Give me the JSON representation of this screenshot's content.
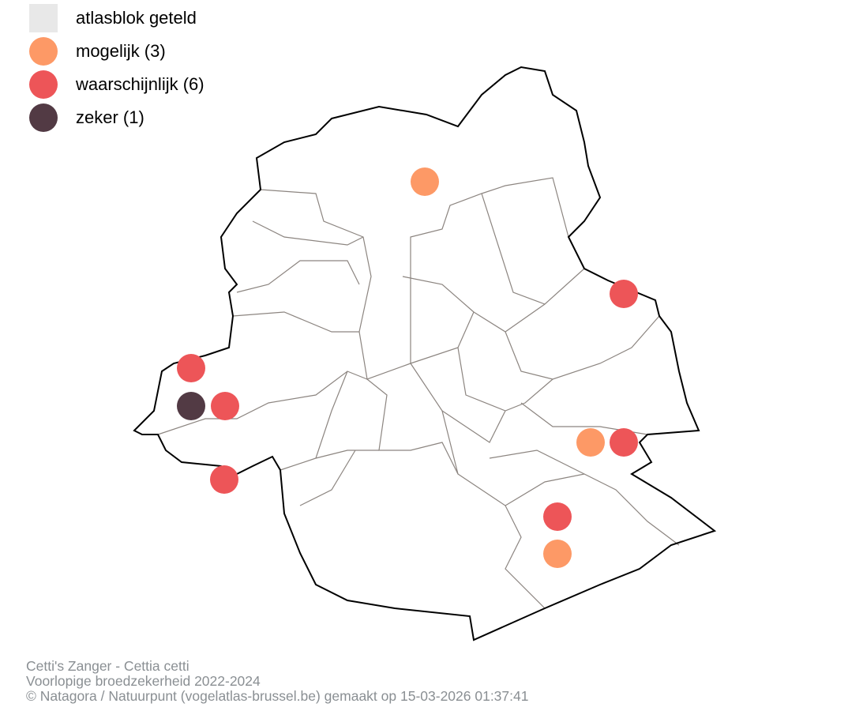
{
  "legend": {
    "items": [
      {
        "label": "atlasblok geteld",
        "color": "#e8e8e8",
        "shape": "square"
      },
      {
        "label": "mogelijk (3)",
        "color": "#fd9966",
        "shape": "circle"
      },
      {
        "label": "waarschijnlijk (6)",
        "color": "#ed5558",
        "shape": "circle"
      },
      {
        "label": "zeker (1)",
        "color": "#523a44",
        "shape": "circle"
      }
    ]
  },
  "observations": [
    "mogelijk",
    "waarschijnlijk",
    "waarschijnlijk",
    "zeker",
    "waarschijnlijk",
    "waarschijnlijk",
    "mogelijk",
    "waarschijnlijk",
    "waarschijnlijk",
    "mogelijk"
  ],
  "caption": {
    "line1": "Cetti's Zanger - Cettia cetti",
    "line2": "Voorlopige broedzekerheid 2022-2024",
    "line3": "© Natagora / Natuurpunt (vogelatlas-brussel.be) gemaakt op 15-03-2026 01:37:41"
  }
}
